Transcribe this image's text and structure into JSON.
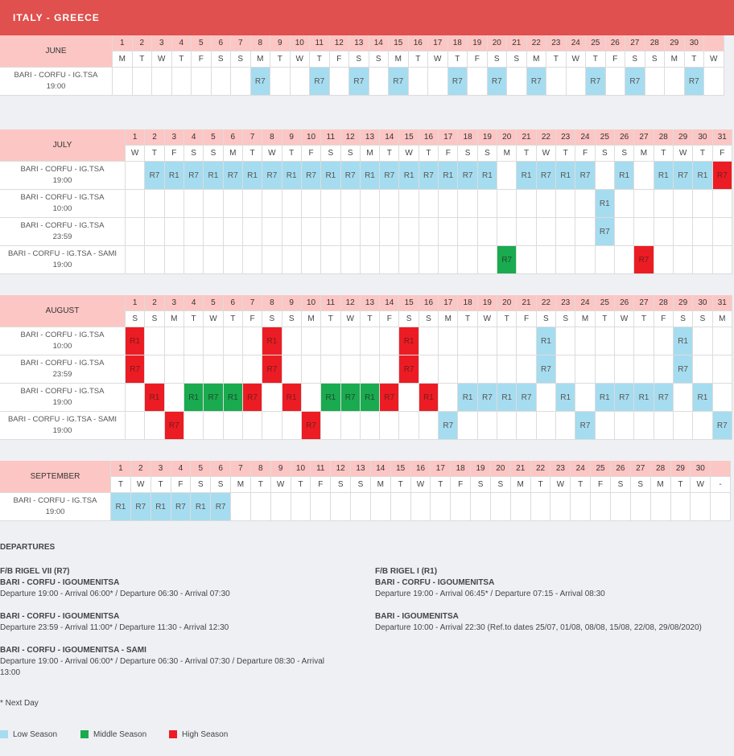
{
  "header": {
    "title": "ITALY - GREECE"
  },
  "colors": {
    "low": "#a6dcef",
    "mid": "#1aaa4f",
    "high": "#ec1c24"
  },
  "months": [
    {
      "name": "JUNE",
      "days": [
        "M",
        "T",
        "W",
        "T",
        "F",
        "S",
        "S",
        "M",
        "T",
        "W",
        "T",
        "F",
        "S",
        "S",
        "M",
        "T",
        "W",
        "T",
        "F",
        "S",
        "S",
        "M",
        "T",
        "W",
        "T",
        "F",
        "S",
        "S",
        "M",
        "T",
        "W"
      ],
      "day_numbers": [
        "1",
        "2",
        "3",
        "4",
        "5",
        "6",
        "7",
        "8",
        "9",
        "10",
        "11",
        "12",
        "13",
        "14",
        "15",
        "16",
        "17",
        "18",
        "19",
        "20",
        "21",
        "22",
        "23",
        "24",
        "25",
        "26",
        "27",
        "28",
        "29",
        "30",
        ""
      ],
      "routes": [
        {
          "line1": "BARI - CORFU - IG.TSA",
          "line2": "19:00",
          "cells": [
            {
              "d": 8,
              "t": "R7",
              "s": "low"
            },
            {
              "d": 11,
              "t": "R7",
              "s": "low"
            },
            {
              "d": 13,
              "t": "R7",
              "s": "low"
            },
            {
              "d": 15,
              "t": "R7",
              "s": "low"
            },
            {
              "d": 18,
              "t": "R7",
              "s": "low"
            },
            {
              "d": 20,
              "t": "R7",
              "s": "low"
            },
            {
              "d": 22,
              "t": "R7",
              "s": "low"
            },
            {
              "d": 25,
              "t": "R7",
              "s": "low"
            },
            {
              "d": 27,
              "t": "R7",
              "s": "low"
            },
            {
              "d": 30,
              "t": "R7",
              "s": "low"
            }
          ]
        }
      ]
    },
    {
      "name": "JULY",
      "days": [
        "W",
        "T",
        "F",
        "S",
        "S",
        "M",
        "T",
        "W",
        "T",
        "F",
        "S",
        "S",
        "M",
        "T",
        "W",
        "T",
        "F",
        "S",
        "S",
        "M",
        "T",
        "W",
        "T",
        "F",
        "S",
        "S",
        "M",
        "T",
        "W",
        "T",
        "F"
      ],
      "day_numbers": [
        "1",
        "2",
        "3",
        "4",
        "5",
        "6",
        "7",
        "8",
        "9",
        "10",
        "11",
        "12",
        "13",
        "14",
        "15",
        "16",
        "17",
        "18",
        "19",
        "20",
        "21",
        "22",
        "23",
        "24",
        "25",
        "26",
        "27",
        "28",
        "29",
        "30",
        "31"
      ],
      "routes": [
        {
          "line1": "BARI - CORFU - IG.TSA",
          "line2": "19:00",
          "cells": [
            {
              "d": 2,
              "t": "R7",
              "s": "low"
            },
            {
              "d": 3,
              "t": "R1",
              "s": "low"
            },
            {
              "d": 4,
              "t": "R7",
              "s": "low"
            },
            {
              "d": 5,
              "t": "R1",
              "s": "low"
            },
            {
              "d": 6,
              "t": "R7",
              "s": "low"
            },
            {
              "d": 7,
              "t": "R1",
              "s": "low"
            },
            {
              "d": 8,
              "t": "R7",
              "s": "low"
            },
            {
              "d": 9,
              "t": "R1",
              "s": "low"
            },
            {
              "d": 10,
              "t": "R7",
              "s": "low"
            },
            {
              "d": 11,
              "t": "R1",
              "s": "low"
            },
            {
              "d": 12,
              "t": "R7",
              "s": "low"
            },
            {
              "d": 13,
              "t": "R1",
              "s": "low"
            },
            {
              "d": 14,
              "t": "R7",
              "s": "low"
            },
            {
              "d": 15,
              "t": "R1",
              "s": "low"
            },
            {
              "d": 16,
              "t": "R7",
              "s": "low"
            },
            {
              "d": 17,
              "t": "R1",
              "s": "low"
            },
            {
              "d": 18,
              "t": "R7",
              "s": "low"
            },
            {
              "d": 19,
              "t": "R1",
              "s": "low"
            },
            {
              "d": 21,
              "t": "R1",
              "s": "low"
            },
            {
              "d": 22,
              "t": "R7",
              "s": "low"
            },
            {
              "d": 23,
              "t": "R1",
              "s": "low"
            },
            {
              "d": 24,
              "t": "R7",
              "s": "low"
            },
            {
              "d": 26,
              "t": "R1",
              "s": "low"
            },
            {
              "d": 28,
              "t": "R1",
              "s": "low"
            },
            {
              "d": 29,
              "t": "R7",
              "s": "low"
            },
            {
              "d": 30,
              "t": "R1",
              "s": "low"
            },
            {
              "d": 31,
              "t": "R7",
              "s": "high"
            }
          ]
        },
        {
          "line1": "BARI - CORFU - IG.TSA",
          "line2": "10:00",
          "cells": [
            {
              "d": 25,
              "t": "R1",
              "s": "low"
            }
          ]
        },
        {
          "line1": "BARI - CORFU - IG.TSA",
          "line2": "23:59",
          "cells": [
            {
              "d": 25,
              "t": "R7",
              "s": "low"
            }
          ]
        },
        {
          "line1": "BARI - CORFU - IG.TSA - SAMI",
          "line2": "19:00",
          "cells": [
            {
              "d": 20,
              "t": "R7",
              "s": "mid"
            },
            {
              "d": 27,
              "t": "R7",
              "s": "high"
            }
          ]
        }
      ]
    },
    {
      "name": "AUGUST",
      "days": [
        "S",
        "S",
        "M",
        "T",
        "W",
        "T",
        "F",
        "S",
        "S",
        "M",
        "T",
        "W",
        "T",
        "F",
        "S",
        "S",
        "M",
        "T",
        "W",
        "T",
        "F",
        "S",
        "S",
        "M",
        "T",
        "W",
        "T",
        "F",
        "S",
        "S",
        "M"
      ],
      "day_numbers": [
        "1",
        "2",
        "3",
        "4",
        "5",
        "6",
        "7",
        "8",
        "9",
        "10",
        "11",
        "12",
        "13",
        "14",
        "15",
        "16",
        "17",
        "18",
        "19",
        "20",
        "21",
        "22",
        "23",
        "24",
        "25",
        "26",
        "27",
        "28",
        "29",
        "30",
        "31"
      ],
      "routes": [
        {
          "line1": "BARI - CORFU - IG.TSA",
          "line2": "10:00",
          "cells": [
            {
              "d": 1,
              "t": "R1",
              "s": "high"
            },
            {
              "d": 8,
              "t": "R1",
              "s": "high"
            },
            {
              "d": 15,
              "t": "R1",
              "s": "high"
            },
            {
              "d": 22,
              "t": "R1",
              "s": "low"
            },
            {
              "d": 29,
              "t": "R1",
              "s": "low"
            }
          ]
        },
        {
          "line1": "BARI - CORFU - IG.TSA",
          "line2": "23:59",
          "cells": [
            {
              "d": 1,
              "t": "R7",
              "s": "high"
            },
            {
              "d": 8,
              "t": "R7",
              "s": "high"
            },
            {
              "d": 15,
              "t": "R7",
              "s": "high"
            },
            {
              "d": 22,
              "t": "R7",
              "s": "low"
            },
            {
              "d": 29,
              "t": "R7",
              "s": "low"
            }
          ]
        },
        {
          "line1": "BARI - CORFU - IG.TSA",
          "line2": "19:00",
          "cells": [
            {
              "d": 2,
              "t": "R1",
              "s": "high"
            },
            {
              "d": 4,
              "t": "R1",
              "s": "mid"
            },
            {
              "d": 5,
              "t": "R7",
              "s": "mid"
            },
            {
              "d": 6,
              "t": "R1",
              "s": "mid"
            },
            {
              "d": 7,
              "t": "R7",
              "s": "high"
            },
            {
              "d": 9,
              "t": "R1",
              "s": "high"
            },
            {
              "d": 11,
              "t": "R1",
              "s": "mid"
            },
            {
              "d": 12,
              "t": "R7",
              "s": "mid"
            },
            {
              "d": 13,
              "t": "R1",
              "s": "mid"
            },
            {
              "d": 14,
              "t": "R7",
              "s": "high"
            },
            {
              "d": 16,
              "t": "R1",
              "s": "high"
            },
            {
              "d": 18,
              "t": "R1",
              "s": "low"
            },
            {
              "d": 19,
              "t": "R7",
              "s": "low"
            },
            {
              "d": 20,
              "t": "R1",
              "s": "low"
            },
            {
              "d": 21,
              "t": "R7",
              "s": "low"
            },
            {
              "d": 23,
              "t": "R1",
              "s": "low"
            },
            {
              "d": 25,
              "t": "R1",
              "s": "low"
            },
            {
              "d": 26,
              "t": "R7",
              "s": "low"
            },
            {
              "d": 27,
              "t": "R1",
              "s": "low"
            },
            {
              "d": 28,
              "t": "R7",
              "s": "low"
            },
            {
              "d": 30,
              "t": "R1",
              "s": "low"
            }
          ]
        },
        {
          "line1": "BARI - CORFU - IG.TSA - SAMI",
          "line2": "19:00",
          "cells": [
            {
              "d": 3,
              "t": "R7",
              "s": "high"
            },
            {
              "d": 10,
              "t": "R7",
              "s": "high"
            },
            {
              "d": 17,
              "t": "R7",
              "s": "low"
            },
            {
              "d": 24,
              "t": "R7",
              "s": "low"
            },
            {
              "d": 31,
              "t": "R7",
              "s": "low"
            }
          ]
        }
      ]
    },
    {
      "name": "SEPTEMBER",
      "days": [
        "T",
        "W",
        "T",
        "F",
        "S",
        "S",
        "M",
        "T",
        "W",
        "T",
        "F",
        "S",
        "S",
        "M",
        "T",
        "W",
        "T",
        "F",
        "S",
        "S",
        "M",
        "T",
        "W",
        "T",
        "F",
        "S",
        "S",
        "M",
        "T",
        "W",
        "-"
      ],
      "day_numbers": [
        "1",
        "2",
        "3",
        "4",
        "5",
        "6",
        "7",
        "8",
        "9",
        "10",
        "11",
        "12",
        "13",
        "14",
        "15",
        "16",
        "17",
        "18",
        "19",
        "20",
        "21",
        "22",
        "23",
        "24",
        "25",
        "26",
        "27",
        "28",
        "29",
        "30",
        ""
      ],
      "routes": [
        {
          "line1": "BARI - CORFU - IG.TSA",
          "line2": "19:00",
          "cells": [
            {
              "d": 1,
              "t": "R1",
              "s": "low"
            },
            {
              "d": 2,
              "t": "R7",
              "s": "low"
            },
            {
              "d": 3,
              "t": "R1",
              "s": "low"
            },
            {
              "d": 4,
              "t": "R7",
              "s": "low"
            },
            {
              "d": 5,
              "t": "R1",
              "s": "low"
            },
            {
              "d": 6,
              "t": "R7",
              "s": "low"
            }
          ]
        }
      ]
    }
  ],
  "departures": {
    "heading": "DEPARTURES",
    "left": {
      "ship": "F/B RIGEL VII (R7)",
      "routes": [
        {
          "title": "BARI - CORFU - IGOUMENITSA",
          "text": "Departure 19:00 - Arrival 06:00* / Departure 06:30 - Arrival 07:30"
        },
        {
          "title": "BARI - CORFU - IGOUMENITSA",
          "text": "Departure 23:59 - Arrival 11:00* / Departure 11:30 - Arrival 12:30"
        },
        {
          "title": "BARI - CORFU - IGOUMENITSA - SAMI",
          "text": "Departure 19:00 - Arrival 06:00* / Departure 06:30 - Arrival 07:30 / Departure 08:30 - Arrival 13:00"
        }
      ]
    },
    "right": {
      "ship": "F/B RIGEL I (R1)",
      "routes": [
        {
          "title": "BARI - CORFU - IGOUMENITSA",
          "text": "Departure 19:00 - Arrival 06:45* / Departure 07:15 - Arrival 08:30"
        },
        {
          "title": "BARI - IGOUMENITSA",
          "text": "Departure 10:00 - Arrival 22:30 (Ref.to dates 25/07, 01/08, 08/08, 15/08, 22/08, 29/08/2020)"
        }
      ]
    },
    "footnote": "* Next Day"
  },
  "legend": [
    {
      "label": "Low Season",
      "color": "#a6dcef"
    },
    {
      "label": "Middle Season",
      "color": "#1aaa4f"
    },
    {
      "label": "High Season",
      "color": "#ec1c24"
    }
  ]
}
